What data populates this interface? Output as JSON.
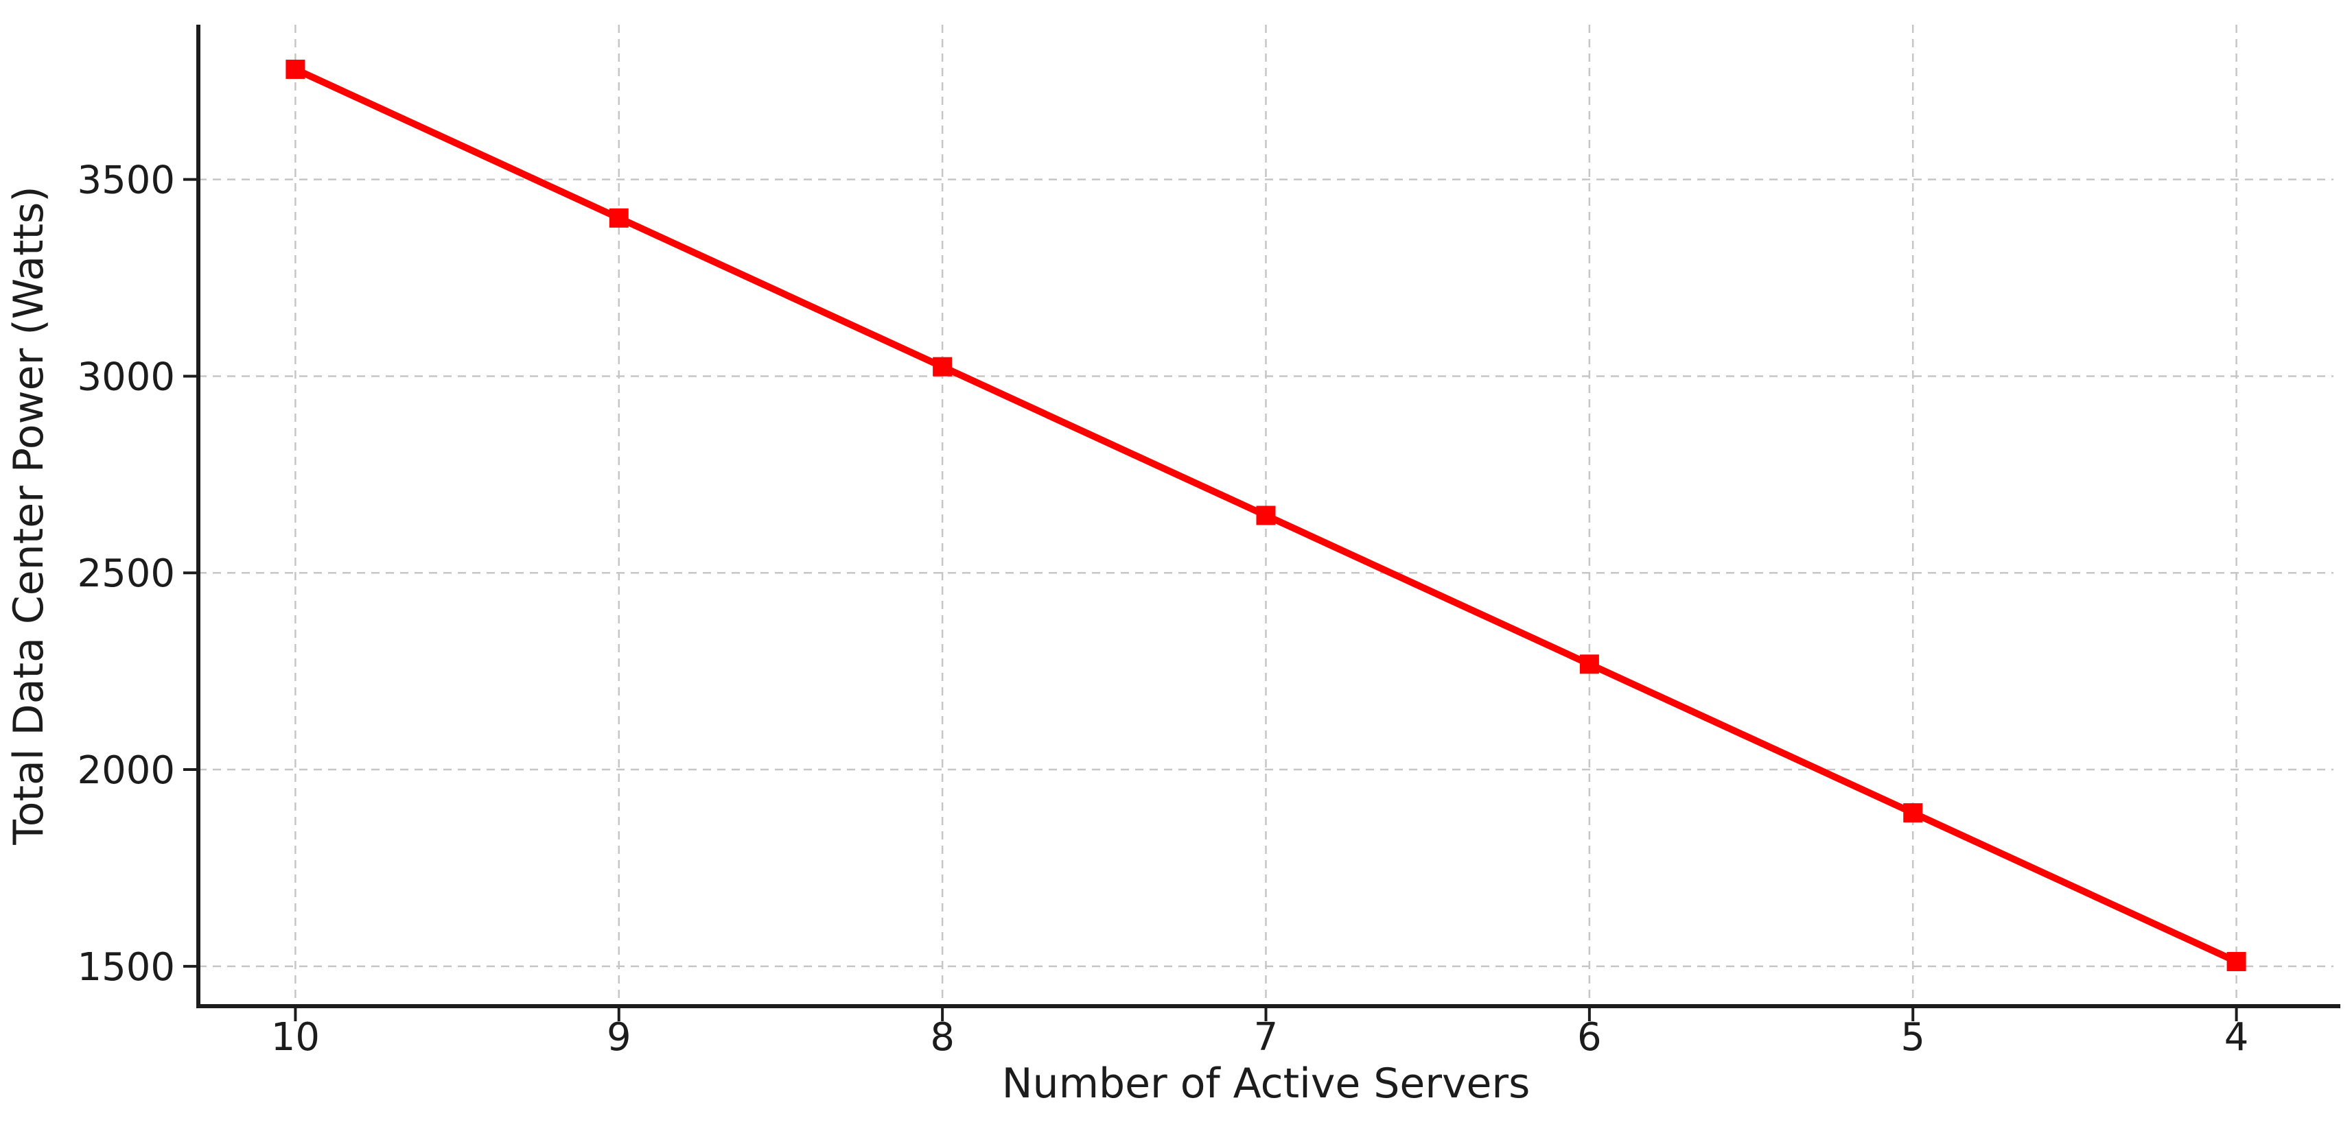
{
  "figure": {
    "background": "#ffffff"
  },
  "chart_data": {
    "type": "line",
    "title": "",
    "xlabel": "Number of Active Servers",
    "ylabel": "Total Data Center Power (Watts)",
    "x": [
      10,
      9,
      8,
      7,
      6,
      5,
      4
    ],
    "series": [
      {
        "name": "total-data-center-power",
        "values": [
          3780,
          3402,
          3024,
          2646,
          2268,
          1890,
          1512
        ],
        "color": "#ff0000",
        "marker": "square",
        "line_style": "solid"
      }
    ],
    "x_ticks": [
      10,
      9,
      8,
      7,
      6,
      5,
      4
    ],
    "x_tick_labels": [
      "10",
      "9",
      "8",
      "7",
      "6",
      "5",
      "4"
    ],
    "y_ticks": [
      1500,
      2000,
      2500,
      3000,
      3500
    ],
    "y_tick_labels": [
      "1500",
      "2000",
      "2500",
      "3000",
      "3500"
    ],
    "xlim": [
      3.7,
      10.3
    ],
    "ylim": [
      1398.6,
      3893.4
    ],
    "x_axis_reversed": true,
    "grid": true,
    "grid_linestyle": "dashed",
    "legend_position": "none",
    "colors": {
      "line": "#ff0000",
      "grid": "#c6c6c6",
      "spine": "#1c1c1c",
      "text": "#1c1c1c"
    }
  }
}
